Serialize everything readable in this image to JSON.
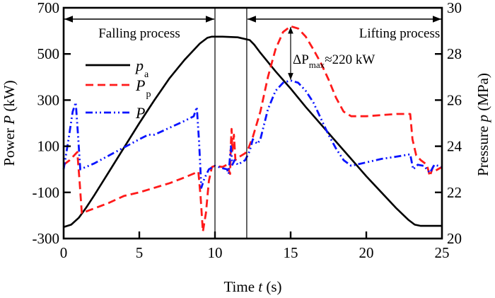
{
  "chart_data": {
    "type": "line",
    "title": "",
    "xlabel": "Time",
    "xlabel_var": "t",
    "xlabel_unit": "(s)",
    "ylabel_left": "Power",
    "ylabel_left_var": "P",
    "ylabel_left_unit": "(kW)",
    "ylabel_right": "Pressure",
    "ylabel_right_var": "p",
    "ylabel_right_unit": "(MPa)",
    "xlim": [
      0,
      25
    ],
    "ylim_left": [
      -300,
      700
    ],
    "ylim_right": [
      20,
      30
    ],
    "x_ticks": [
      0,
      5,
      10,
      15,
      20,
      25
    ],
    "y_ticks_left": [
      -300,
      -100,
      100,
      300,
      500,
      700
    ],
    "y_ticks_right": [
      20,
      22,
      24,
      26,
      28,
      30
    ],
    "grid": false,
    "legend_position": "upper-left",
    "series": [
      {
        "name": "p_a",
        "label_main": "p",
        "label_sub": "a",
        "axis": "right",
        "color": "#000000",
        "style": "solid",
        "points": [
          [
            0,
            20.5
          ],
          [
            0.5,
            20.6
          ],
          [
            1,
            20.9
          ],
          [
            1.5,
            21.35
          ],
          [
            2,
            21.85
          ],
          [
            3,
            22.9
          ],
          [
            4,
            23.95
          ],
          [
            5,
            25.0
          ],
          [
            6,
            26.0
          ],
          [
            7,
            26.95
          ],
          [
            8,
            27.75
          ],
          [
            9,
            28.45
          ],
          [
            9.5,
            28.7
          ],
          [
            9.8,
            28.75
          ],
          [
            10.5,
            28.75
          ],
          [
            11.5,
            28.72
          ],
          [
            12.3,
            28.6
          ],
          [
            12.6,
            28.4
          ],
          [
            13,
            28.05
          ],
          [
            14,
            27.25
          ],
          [
            15,
            26.5
          ],
          [
            16,
            25.7
          ],
          [
            17,
            24.95
          ],
          [
            18,
            24.2
          ],
          [
            19,
            23.45
          ],
          [
            20,
            22.7
          ],
          [
            21,
            22.0
          ],
          [
            22,
            21.3
          ],
          [
            22.8,
            20.8
          ],
          [
            23.2,
            20.6
          ],
          [
            23.6,
            20.55
          ],
          [
            25,
            20.55
          ]
        ]
      },
      {
        "name": "P_p",
        "label_main": "P",
        "label_sub": "p",
        "axis": "left",
        "color": "#ff1a1a",
        "style": "dashed",
        "points": [
          [
            0,
            20
          ],
          [
            0.4,
            40
          ],
          [
            0.9,
            75
          ],
          [
            1.05,
            -50
          ],
          [
            1.2,
            -190
          ],
          [
            2,
            -170
          ],
          [
            3,
            -145
          ],
          [
            4,
            -115
          ],
          [
            5,
            -100
          ],
          [
            6,
            -80
          ],
          [
            7,
            -60
          ],
          [
            8,
            -35
          ],
          [
            8.9,
            -10
          ],
          [
            9.05,
            -120
          ],
          [
            9.2,
            -270
          ],
          [
            9.4,
            -190
          ],
          [
            9.6,
            -50
          ],
          [
            9.8,
            10
          ],
          [
            10,
            15
          ],
          [
            10.5,
            10
          ],
          [
            10.8,
            20
          ],
          [
            11,
            -20
          ],
          [
            11.05,
            110
          ],
          [
            11.1,
            175
          ],
          [
            11.15,
            80
          ],
          [
            11.25,
            150
          ],
          [
            11.35,
            40
          ],
          [
            11.5,
            50
          ],
          [
            12,
            70
          ],
          [
            12.2,
            90
          ],
          [
            12.5,
            140
          ],
          [
            13,
            250
          ],
          [
            13.5,
            400
          ],
          [
            14,
            520
          ],
          [
            14.5,
            595
          ],
          [
            15,
            620
          ],
          [
            15.5,
            610
          ],
          [
            16,
            575
          ],
          [
            16.5,
            520
          ],
          [
            17,
            460
          ],
          [
            17.5,
            390
          ],
          [
            18,
            310
          ],
          [
            18.5,
            250
          ],
          [
            19,
            230
          ],
          [
            20,
            230
          ],
          [
            21,
            235
          ],
          [
            22,
            240
          ],
          [
            22.9,
            240
          ],
          [
            23.05,
            130
          ],
          [
            23.3,
            60
          ],
          [
            23.6,
            40
          ],
          [
            24,
            20
          ],
          [
            24.2,
            -30
          ],
          [
            24.4,
            10
          ],
          [
            24.6,
            -5
          ],
          [
            25,
            10
          ]
        ]
      },
      {
        "name": "P",
        "label_main": "P",
        "label_sub": "",
        "axis": "left",
        "color": "#0a14ff",
        "style": "dashdot",
        "points": [
          [
            0,
            0
          ],
          [
            0.3,
            120
          ],
          [
            0.6,
            250
          ],
          [
            0.8,
            290
          ],
          [
            0.95,
            150
          ],
          [
            1.1,
            0
          ],
          [
            2,
            25
          ],
          [
            3,
            60
          ],
          [
            4,
            95
          ],
          [
            5,
            130
          ],
          [
            5.6,
            150
          ],
          [
            6,
            150
          ],
          [
            7,
            180
          ],
          [
            8,
            210
          ],
          [
            8.6,
            230
          ],
          [
            8.8,
            270
          ],
          [
            8.95,
            120
          ],
          [
            9.1,
            -80
          ],
          [
            9.3,
            -40
          ],
          [
            9.6,
            0
          ],
          [
            10,
            15
          ],
          [
            10.5,
            5
          ],
          [
            10.8,
            0
          ],
          [
            10.9,
            -20
          ],
          [
            11,
            60
          ],
          [
            11.05,
            100
          ],
          [
            11.15,
            20
          ],
          [
            11.3,
            40
          ],
          [
            11.5,
            20
          ],
          [
            12,
            40
          ],
          [
            12.3,
            80
          ],
          [
            12.5,
            130
          ],
          [
            12.8,
            110
          ],
          [
            13,
            130
          ],
          [
            13.5,
            260
          ],
          [
            14,
            340
          ],
          [
            14.5,
            375
          ],
          [
            15,
            385
          ],
          [
            15.5,
            375
          ],
          [
            16,
            340
          ],
          [
            16.5,
            290
          ],
          [
            17,
            220
          ],
          [
            17.5,
            150
          ],
          [
            18,
            90
          ],
          [
            18.5,
            40
          ],
          [
            19,
            15
          ],
          [
            20,
            30
          ],
          [
            21,
            45
          ],
          [
            22,
            55
          ],
          [
            22.9,
            65
          ],
          [
            23.1,
            0
          ],
          [
            23.4,
            20
          ],
          [
            23.8,
            15
          ],
          [
            24.2,
            -15
          ],
          [
            24.5,
            20
          ],
          [
            25,
            10
          ]
        ]
      }
    ],
    "annotations": {
      "falling_label": "Falling process",
      "lifting_label": "Lifting process",
      "falling_range": [
        0,
        10
      ],
      "lifting_range": [
        12.1,
        25
      ],
      "divider_times": [
        10,
        12.1
      ],
      "delta_label_prefix": "ΔP",
      "delta_label_sub": "max",
      "delta_label_suffix": "≈220 kW",
      "delta_arrow_time": 15,
      "delta_arrow_from": 620,
      "delta_arrow_to": 385
    }
  }
}
